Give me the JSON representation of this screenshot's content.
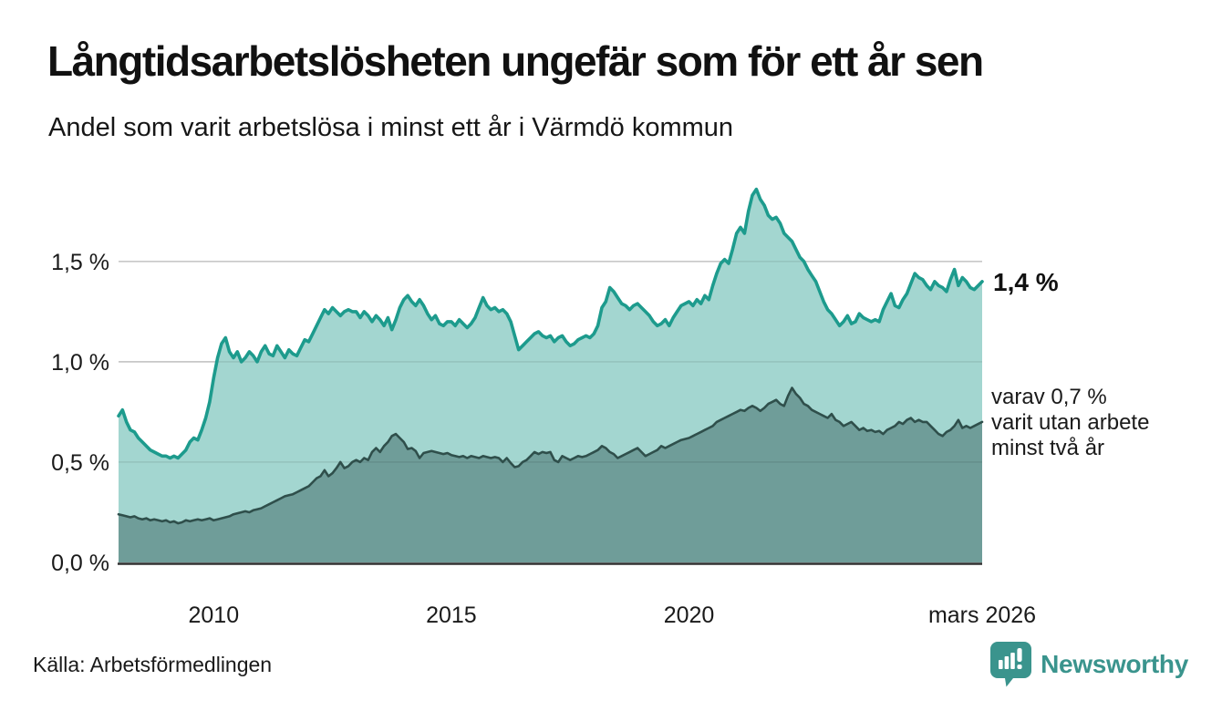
{
  "header": {
    "title": "Långtidsarbetslösheten ungefär som för ett år sen",
    "subtitle": "Andel som varit arbetslösa i minst ett år i Värmdö kommun"
  },
  "footer": {
    "source": "Källa: Arbetsförmedlingen",
    "brand": "Newsworthy"
  },
  "colors": {
    "line_primary": "#1d9b8d",
    "fill_primary": "#a3d6d0",
    "line_secondary": "#2f4f4b",
    "fill_secondary": "#6f9d99",
    "grid": "#d9d9d9",
    "axis": "#2e2e2e",
    "text": "#1a1a1a",
    "brand": "#3a948d",
    "background": "#ffffff"
  },
  "chart_data": {
    "type": "area",
    "title": "Långtidsarbetslösheten ungefär som för ett år sen",
    "subtitle": "Andel som varit arbetslösa i minst ett år i Värmdö kommun",
    "x_start_year": 2008,
    "x_step_months": 1,
    "ylim": [
      0,
      1.94
    ],
    "grid": true,
    "y_ticks": [
      {
        "value": 1.5,
        "label": "1,5 %"
      },
      {
        "value": 1.0,
        "label": "1,0 %"
      },
      {
        "value": 0.5,
        "label": "0,5 %"
      },
      {
        "value": 0.0,
        "label": "0,0 %"
      }
    ],
    "x_ticks": [
      {
        "value": 2010,
        "label": "2010"
      },
      {
        "value": 2015,
        "label": "2015"
      },
      {
        "value": 2020,
        "label": "2020"
      },
      {
        "value": 2026.167,
        "label": "mars 2026"
      }
    ],
    "series": [
      {
        "name": "arbetslösa minst ett år",
        "end_value": 1.4,
        "values": [
          0.73,
          0.76,
          0.7,
          0.66,
          0.65,
          0.62,
          0.6,
          0.58,
          0.56,
          0.55,
          0.54,
          0.53,
          0.53,
          0.52,
          0.53,
          0.52,
          0.54,
          0.56,
          0.6,
          0.62,
          0.61,
          0.66,
          0.72,
          0.8,
          0.92,
          1.02,
          1.09,
          1.12,
          1.05,
          1.02,
          1.05,
          1.0,
          1.02,
          1.05,
          1.03,
          1.0,
          1.05,
          1.08,
          1.04,
          1.03,
          1.08,
          1.05,
          1.02,
          1.06,
          1.04,
          1.03,
          1.07,
          1.11,
          1.1,
          1.14,
          1.18,
          1.22,
          1.26,
          1.24,
          1.27,
          1.25,
          1.23,
          1.25,
          1.26,
          1.25,
          1.25,
          1.22,
          1.25,
          1.23,
          1.2,
          1.23,
          1.21,
          1.18,
          1.22,
          1.16,
          1.21,
          1.27,
          1.31,
          1.33,
          1.3,
          1.28,
          1.31,
          1.28,
          1.24,
          1.21,
          1.23,
          1.19,
          1.18,
          1.2,
          1.2,
          1.18,
          1.21,
          1.19,
          1.17,
          1.19,
          1.22,
          1.27,
          1.32,
          1.28,
          1.26,
          1.27,
          1.25,
          1.26,
          1.24,
          1.2,
          1.13,
          1.06,
          1.08,
          1.1,
          1.12,
          1.14,
          1.15,
          1.13,
          1.12,
          1.13,
          1.1,
          1.12,
          1.13,
          1.1,
          1.08,
          1.09,
          1.11,
          1.12,
          1.13,
          1.12,
          1.14,
          1.18,
          1.27,
          1.3,
          1.37,
          1.35,
          1.32,
          1.29,
          1.28,
          1.26,
          1.28,
          1.29,
          1.27,
          1.25,
          1.23,
          1.2,
          1.18,
          1.19,
          1.21,
          1.18,
          1.22,
          1.25,
          1.28,
          1.29,
          1.3,
          1.28,
          1.31,
          1.29,
          1.33,
          1.31,
          1.38,
          1.44,
          1.49,
          1.51,
          1.49,
          1.56,
          1.64,
          1.67,
          1.64,
          1.75,
          1.83,
          1.86,
          1.81,
          1.78,
          1.73,
          1.71,
          1.72,
          1.69,
          1.64,
          1.62,
          1.6,
          1.56,
          1.52,
          1.5,
          1.46,
          1.43,
          1.4,
          1.35,
          1.3,
          1.26,
          1.24,
          1.21,
          1.18,
          1.2,
          1.23,
          1.19,
          1.2,
          1.24,
          1.22,
          1.21,
          1.2,
          1.21,
          1.2,
          1.26,
          1.3,
          1.34,
          1.28,
          1.27,
          1.31,
          1.34,
          1.39,
          1.44,
          1.42,
          1.41,
          1.38,
          1.36,
          1.4,
          1.38,
          1.37,
          1.35,
          1.41,
          1.46,
          1.38,
          1.42,
          1.4,
          1.37,
          1.36,
          1.38,
          1.4
        ]
      },
      {
        "name": "utan arbete minst två år",
        "end_value": 0.7,
        "values": [
          0.24,
          0.235,
          0.23,
          0.225,
          0.23,
          0.22,
          0.215,
          0.22,
          0.21,
          0.215,
          0.21,
          0.205,
          0.21,
          0.2,
          0.205,
          0.195,
          0.2,
          0.21,
          0.205,
          0.21,
          0.215,
          0.21,
          0.215,
          0.22,
          0.21,
          0.215,
          0.22,
          0.225,
          0.23,
          0.24,
          0.245,
          0.25,
          0.255,
          0.25,
          0.26,
          0.265,
          0.27,
          0.28,
          0.29,
          0.3,
          0.31,
          0.32,
          0.33,
          0.335,
          0.34,
          0.35,
          0.36,
          0.37,
          0.38,
          0.4,
          0.42,
          0.43,
          0.46,
          0.43,
          0.445,
          0.47,
          0.5,
          0.47,
          0.48,
          0.5,
          0.51,
          0.5,
          0.52,
          0.51,
          0.55,
          0.57,
          0.55,
          0.58,
          0.6,
          0.63,
          0.64,
          0.62,
          0.6,
          0.565,
          0.57,
          0.555,
          0.52,
          0.545,
          0.55,
          0.555,
          0.55,
          0.545,
          0.54,
          0.545,
          0.535,
          0.53,
          0.525,
          0.53,
          0.52,
          0.53,
          0.525,
          0.52,
          0.53,
          0.525,
          0.52,
          0.525,
          0.52,
          0.5,
          0.52,
          0.495,
          0.475,
          0.48,
          0.5,
          0.51,
          0.53,
          0.55,
          0.54,
          0.55,
          0.545,
          0.55,
          0.51,
          0.5,
          0.53,
          0.52,
          0.51,
          0.52,
          0.53,
          0.525,
          0.53,
          0.54,
          0.55,
          0.56,
          0.58,
          0.57,
          0.55,
          0.54,
          0.52,
          0.53,
          0.54,
          0.55,
          0.56,
          0.57,
          0.55,
          0.53,
          0.54,
          0.55,
          0.56,
          0.58,
          0.57,
          0.58,
          0.59,
          0.6,
          0.61,
          0.615,
          0.62,
          0.63,
          0.64,
          0.65,
          0.66,
          0.67,
          0.68,
          0.7,
          0.71,
          0.72,
          0.73,
          0.74,
          0.75,
          0.76,
          0.755,
          0.77,
          0.78,
          0.77,
          0.755,
          0.77,
          0.79,
          0.8,
          0.81,
          0.79,
          0.78,
          0.83,
          0.87,
          0.84,
          0.82,
          0.79,
          0.78,
          0.76,
          0.75,
          0.74,
          0.73,
          0.72,
          0.74,
          0.71,
          0.7,
          0.68,
          0.69,
          0.7,
          0.68,
          0.66,
          0.67,
          0.655,
          0.66,
          0.65,
          0.655,
          0.64,
          0.66,
          0.67,
          0.68,
          0.7,
          0.69,
          0.71,
          0.72,
          0.7,
          0.71,
          0.7,
          0.7,
          0.68,
          0.66,
          0.64,
          0.63,
          0.65,
          0.66,
          0.68,
          0.71,
          0.67,
          0.68,
          0.67,
          0.68,
          0.69,
          0.7
        ]
      }
    ],
    "annotations": {
      "end_value_label": "1,4 %",
      "secondary_label_lines": [
        "varav 0,7 %",
        "varit utan arbete",
        "minst två år"
      ]
    },
    "legend": "none"
  }
}
